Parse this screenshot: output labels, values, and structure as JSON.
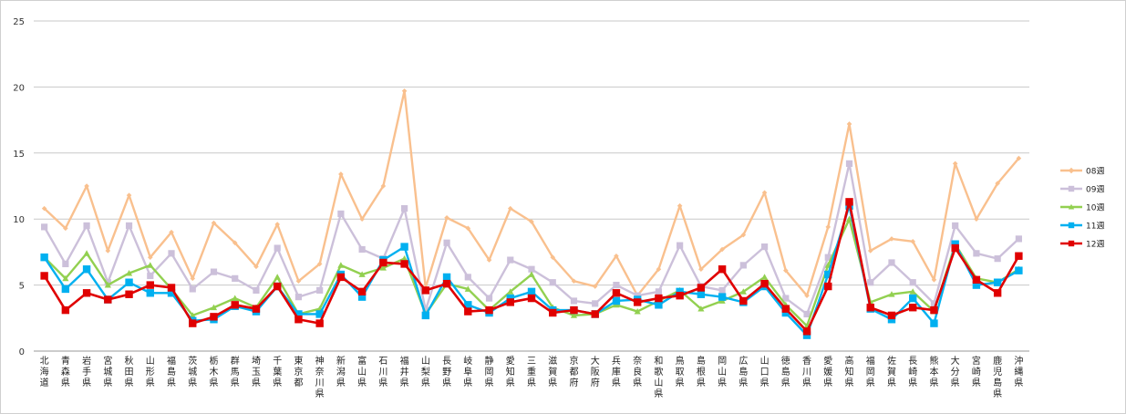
{
  "chart_data": {
    "type": "line",
    "ylim": [
      0,
      25
    ],
    "yticks": [
      0,
      5,
      10,
      15,
      20,
      25
    ],
    "grid": "horizontal",
    "legend_position": "right",
    "categories": [
      "北海道",
      "青森県",
      "岩手県",
      "宮城県",
      "秋田県",
      "山形県",
      "福島県",
      "茨城県",
      "栃木県",
      "群馬県",
      "埼玉県",
      "千葉県",
      "東京都",
      "神奈川県",
      "新潟県",
      "富山県",
      "石川県",
      "福井県",
      "山梨県",
      "長野県",
      "岐阜県",
      "静岡県",
      "愛知県",
      "三重県",
      "滋賀県",
      "京都府",
      "大阪府",
      "兵庫県",
      "奈良県",
      "和歌山県",
      "鳥取県",
      "島根県",
      "岡山県",
      "広島県",
      "山口県",
      "徳島県",
      "香川県",
      "愛媛県",
      "高知県",
      "福岡県",
      "佐賀県",
      "長崎県",
      "熊本県",
      "大分県",
      "宮崎県",
      "鹿児島県",
      "沖縄県"
    ],
    "series": [
      {
        "name": "08週",
        "color": "#F9C08E",
        "marker": "diamond",
        "values": [
          10.8,
          9.3,
          12.5,
          7.6,
          11.8,
          7.1,
          9.0,
          5.5,
          9.7,
          8.2,
          6.4,
          9.6,
          5.3,
          6.6,
          13.4,
          10.0,
          12.5,
          19.7,
          4.8,
          10.1,
          9.3,
          6.9,
          10.8,
          9.8,
          7.1,
          5.3,
          4.9,
          7.2,
          4.2,
          6.2,
          11.0,
          6.2,
          7.7,
          8.8,
          12.0,
          6.1,
          4.2,
          9.4,
          17.2,
          7.6,
          8.5,
          8.3,
          5.4,
          14.2,
          10.0,
          12.7,
          14.6
        ]
      },
      {
        "name": "09週",
        "color": "#CCC0DA",
        "marker": "square",
        "values": [
          9.4,
          6.6,
          9.5,
          5.2,
          9.5,
          5.7,
          7.4,
          4.7,
          6.0,
          5.5,
          4.6,
          7.8,
          4.1,
          4.6,
          10.4,
          7.7,
          7.0,
          10.8,
          3.1,
          8.2,
          5.6,
          4.0,
          6.9,
          6.2,
          5.2,
          3.8,
          3.6,
          5.0,
          4.2,
          4.5,
          8.0,
          4.9,
          4.6,
          6.5,
          7.9,
          4.0,
          2.8,
          7.1,
          14.2,
          5.2,
          6.7,
          5.2,
          3.6,
          9.5,
          7.4,
          7.0,
          8.5
        ]
      },
      {
        "name": "10週",
        "color": "#92D050",
        "marker": "triangle",
        "values": [
          7.1,
          5.5,
          7.4,
          5.0,
          5.9,
          6.5,
          4.7,
          2.7,
          3.3,
          4.0,
          3.3,
          5.6,
          2.8,
          3.2,
          6.5,
          5.8,
          6.3,
          7.0,
          2.8,
          5.1,
          4.7,
          3.1,
          4.5,
          5.8,
          3.3,
          2.7,
          2.8,
          3.5,
          3.0,
          3.8,
          4.6,
          3.2,
          3.8,
          4.5,
          5.6,
          3.5,
          1.9,
          6.5,
          10.0,
          3.7,
          4.3,
          4.5,
          3.0,
          8.1,
          5.5,
          5.2,
          6.2
        ]
      },
      {
        "name": "11週",
        "color": "#00B0F0",
        "marker": "square",
        "values": [
          7.1,
          4.7,
          6.2,
          3.9,
          5.2,
          4.4,
          4.4,
          2.3,
          2.4,
          3.4,
          3.0,
          4.9,
          2.8,
          2.8,
          5.8,
          4.1,
          6.9,
          7.9,
          2.7,
          5.6,
          3.5,
          2.9,
          4.0,
          4.5,
          3.1,
          3.1,
          2.8,
          3.8,
          3.9,
          3.5,
          4.5,
          4.3,
          4.1,
          3.7,
          4.9,
          2.9,
          1.2,
          5.8,
          11.0,
          3.2,
          2.4,
          4.0,
          2.1,
          8.1,
          5.0,
          5.2,
          6.1
        ]
      },
      {
        "name": "12週",
        "color": "#E00000",
        "marker": "square",
        "values": [
          5.7,
          3.1,
          4.4,
          3.9,
          4.3,
          5.0,
          4.8,
          2.1,
          2.6,
          3.5,
          3.2,
          4.9,
          2.4,
          2.1,
          5.6,
          4.5,
          6.7,
          6.6,
          4.6,
          5.1,
          3.0,
          3.1,
          3.7,
          4.0,
          2.9,
          3.1,
          2.8,
          4.4,
          3.7,
          4.0,
          4.2,
          4.8,
          6.2,
          3.8,
          5.1,
          3.2,
          1.5,
          4.9,
          11.3,
          3.3,
          2.7,
          3.3,
          3.1,
          7.8,
          5.4,
          4.4,
          7.2
        ]
      }
    ]
  }
}
